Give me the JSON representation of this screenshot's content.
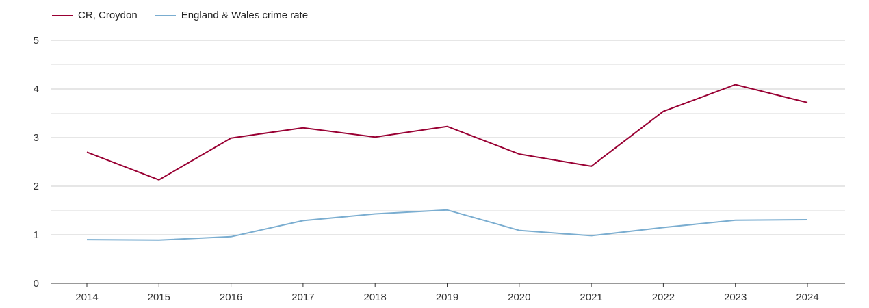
{
  "chart_data": {
    "type": "line",
    "title": "",
    "xlabel": "",
    "ylabel": "",
    "categories": [
      "2014",
      "2015",
      "2016",
      "2017",
      "2018",
      "2019",
      "2020",
      "2021",
      "2022",
      "2023",
      "2024"
    ],
    "ylim": [
      0,
      5
    ],
    "yticks": [
      "0",
      "1",
      "2",
      "3",
      "4",
      "5"
    ],
    "grid": true,
    "legend_position": "top-left",
    "series": [
      {
        "name": "CR, Croydon",
        "color": "#990033",
        "values": [
          2.7,
          2.13,
          2.99,
          3.2,
          3.01,
          3.23,
          2.66,
          2.41,
          3.54,
          4.09,
          3.72
        ]
      },
      {
        "name": "England & Wales crime rate",
        "color": "#7aadd0",
        "values": [
          0.9,
          0.89,
          0.96,
          1.29,
          1.43,
          1.51,
          1.09,
          0.98,
          1.15,
          1.3,
          1.31
        ]
      }
    ]
  }
}
